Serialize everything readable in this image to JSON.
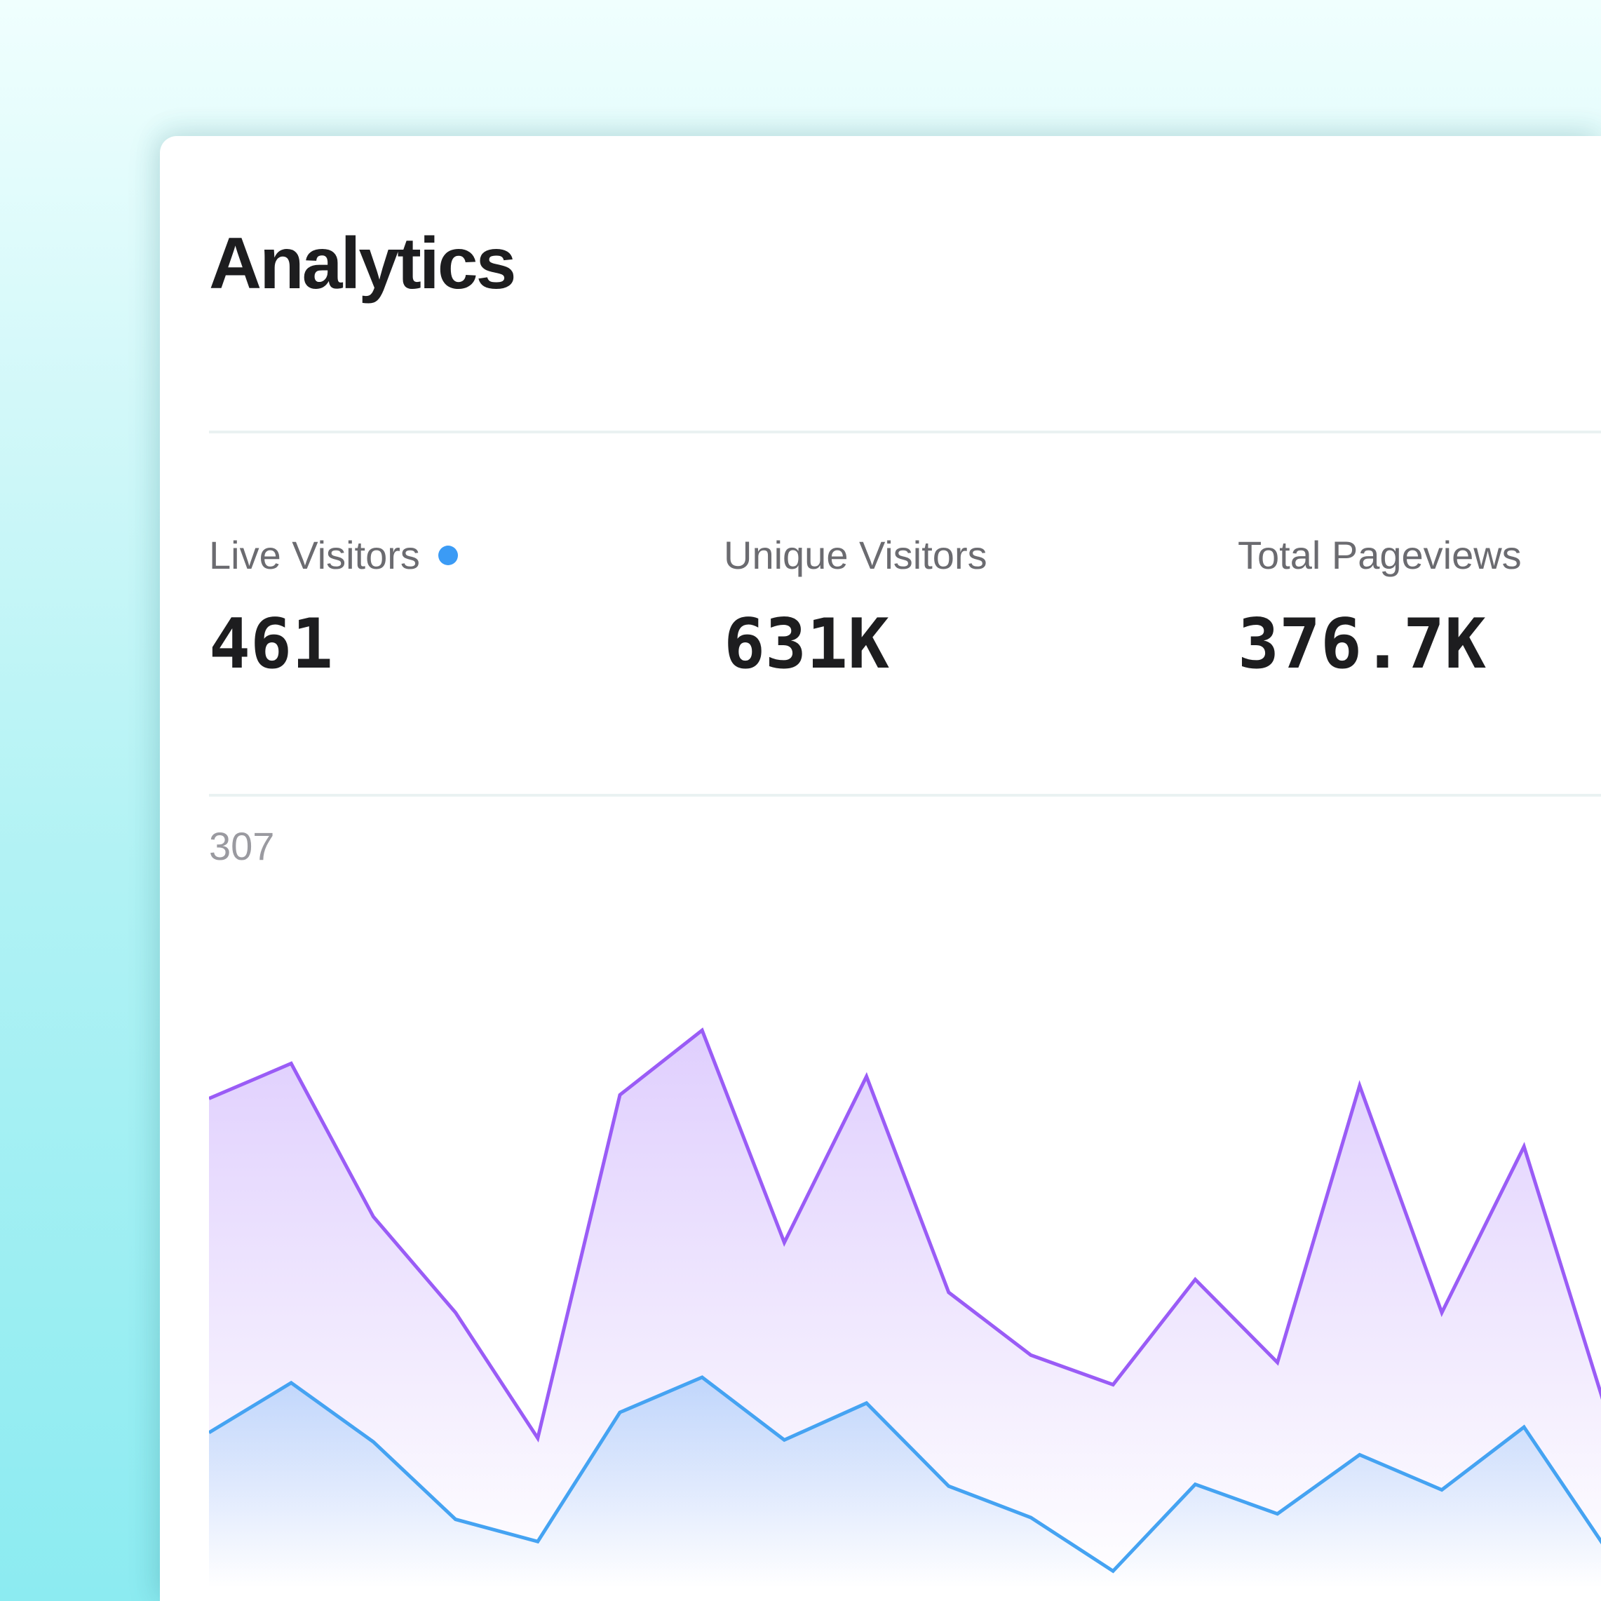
{
  "title": "Analytics",
  "stats": [
    {
      "label": "Live Visitors",
      "value": "461",
      "live": true
    },
    {
      "label": "Unique Visitors",
      "value": "631K"
    },
    {
      "label": "Total Pageviews",
      "value": "376.7K"
    }
  ],
  "colors": {
    "live_dot": "#3b9bf5",
    "pageviews_line": "#9a5cf6",
    "visitors_line": "#45a3f2"
  },
  "chart_data": {
    "type": "area",
    "ymax_label": "307",
    "ylim": [
      0,
      307
    ],
    "grid": false,
    "legend": "none",
    "x": [
      0,
      1,
      2,
      3,
      4,
      5,
      6,
      7,
      8,
      9,
      10,
      11,
      12,
      13,
      14,
      15,
      16,
      17
    ],
    "series": [
      {
        "values": [
          265,
          284,
          201,
          149,
          81,
          267,
          302,
          187,
          277,
          160,
          126,
          110,
          167,
          122,
          272,
          149,
          239,
          96
        ]
      },
      {
        "values": [
          84,
          111,
          79,
          37,
          25,
          95,
          114,
          80,
          100,
          55,
          38,
          9,
          56,
          40,
          72,
          53,
          87,
          21
        ]
      }
    ]
  }
}
